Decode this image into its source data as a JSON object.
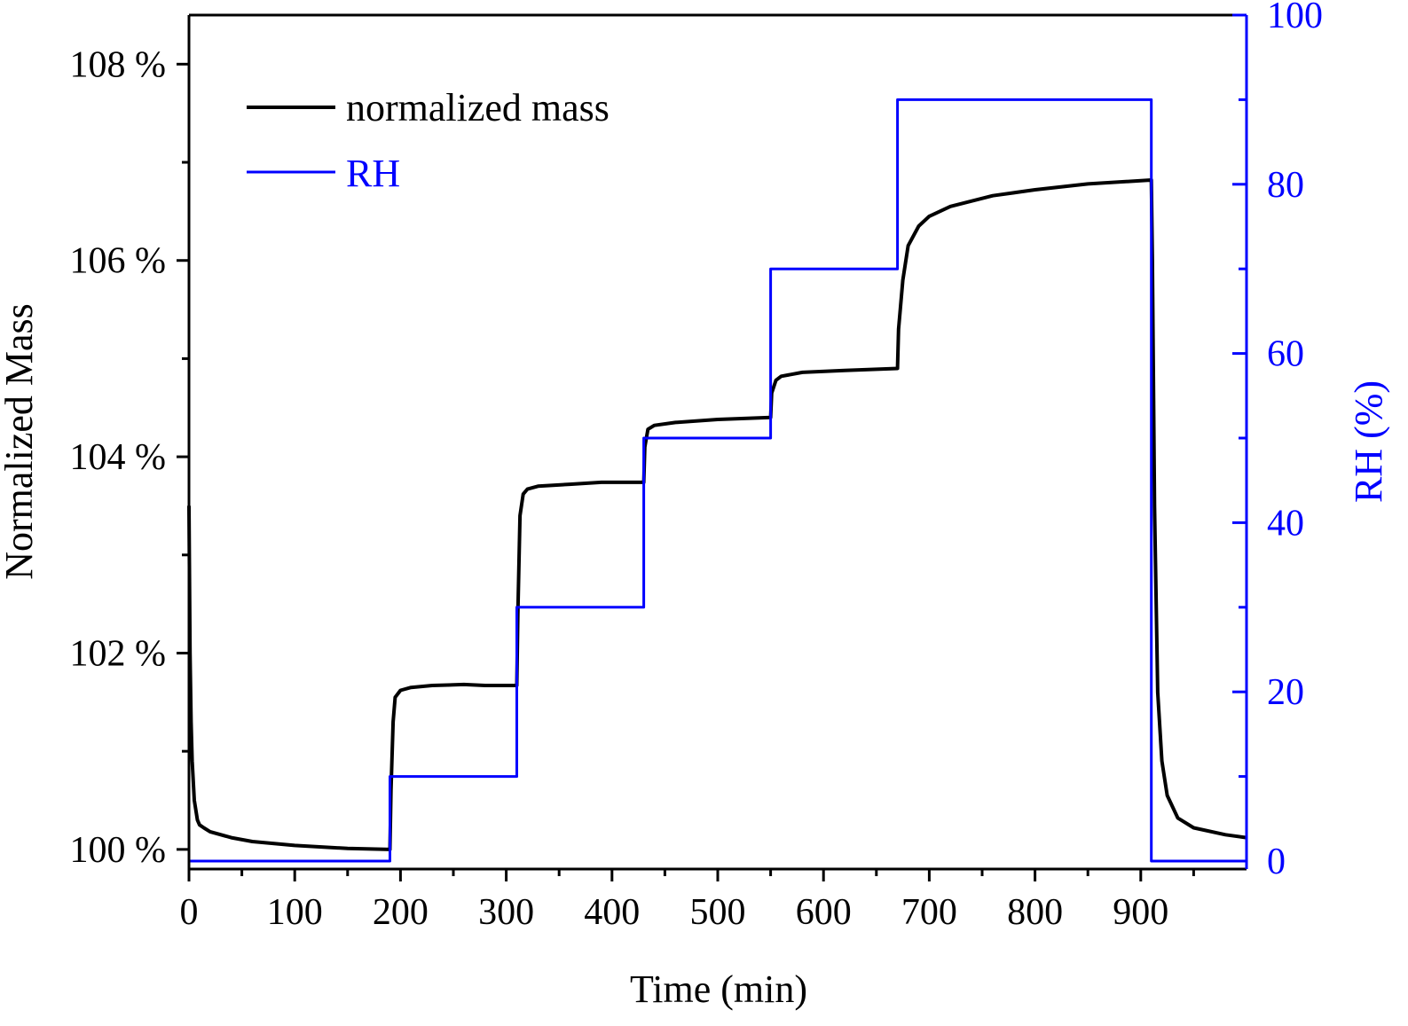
{
  "chart_data": {
    "type": "line",
    "xlabel": "Time (min)",
    "ylabel_left": "Normalized Mass",
    "ylabel_right": "RH (%)",
    "xlim": [
      0,
      1000
    ],
    "ylim_left": [
      99.8,
      108.5
    ],
    "ylim_right": [
      0,
      100
    ],
    "x_ticks": [
      0,
      100,
      200,
      300,
      400,
      500,
      600,
      700,
      800,
      900
    ],
    "x_tick_labels": [
      "0",
      "100",
      "200",
      "300",
      "400",
      "500",
      "600",
      "700",
      "800",
      "900"
    ],
    "y_left_ticks": [
      100,
      102,
      104,
      106,
      108
    ],
    "y_left_tick_labels": [
      "100 %",
      "102 %",
      "104 %",
      "106 %",
      "108 %"
    ],
    "y_right_ticks": [
      0,
      20,
      40,
      60,
      80,
      100
    ],
    "y_right_tick_labels": [
      "0",
      "20",
      "40",
      "60",
      "80",
      "100"
    ],
    "grid": false,
    "legend_position": "top-left",
    "colors": {
      "mass": "#000000",
      "rh": "#0000ff",
      "right_axis": "#0000ff"
    },
    "series": [
      {
        "name": "normalized mass",
        "axis": "left",
        "x": [
          0,
          1,
          2,
          3,
          5,
          8,
          10,
          14,
          20,
          40,
          60,
          100,
          150,
          190,
          191,
          193,
          195,
          200,
          210,
          230,
          260,
          280,
          310,
          311,
          313,
          316,
          320,
          330,
          360,
          390,
          400,
          430,
          431,
          434,
          440,
          460,
          500,
          550,
          551,
          555,
          560,
          580,
          620,
          670,
          671,
          675,
          680,
          690,
          700,
          720,
          760,
          800,
          850,
          910,
          911,
          913,
          916,
          920,
          925,
          935,
          950,
          980,
          1000
        ],
        "y": [
          103.5,
          102.0,
          101.3,
          100.9,
          100.5,
          100.3,
          100.25,
          100.22,
          100.18,
          100.12,
          100.08,
          100.04,
          100.01,
          100.0,
          100.6,
          101.3,
          101.55,
          101.62,
          101.65,
          101.67,
          101.68,
          101.67,
          101.67,
          102.4,
          103.4,
          103.62,
          103.67,
          103.7,
          103.72,
          103.74,
          103.74,
          103.74,
          104.1,
          104.28,
          104.32,
          104.35,
          104.38,
          104.4,
          104.65,
          104.78,
          104.82,
          104.86,
          104.88,
          104.9,
          105.3,
          105.8,
          106.15,
          106.35,
          106.45,
          106.55,
          106.66,
          106.72,
          106.78,
          106.82,
          106.0,
          103.5,
          101.6,
          100.9,
          100.55,
          100.32,
          100.22,
          100.15,
          100.12
        ]
      },
      {
        "name": "RH",
        "axis": "right",
        "x": [
          0,
          190,
          190,
          310,
          310,
          430,
          430,
          550,
          550,
          670,
          670,
          910,
          910,
          1000
        ],
        "y": [
          0,
          0,
          10,
          10,
          30,
          30,
          50,
          50,
          70,
          70,
          90,
          90,
          0,
          0
        ]
      }
    ]
  }
}
